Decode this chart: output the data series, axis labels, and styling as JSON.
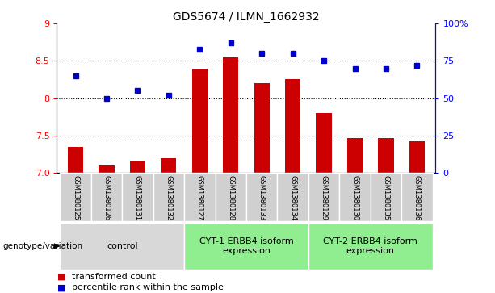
{
  "title": "GDS5674 / ILMN_1662932",
  "samples": [
    "GSM1380125",
    "GSM1380126",
    "GSM1380131",
    "GSM1380132",
    "GSM1380127",
    "GSM1380128",
    "GSM1380133",
    "GSM1380134",
    "GSM1380129",
    "GSM1380130",
    "GSM1380135",
    "GSM1380136"
  ],
  "red_values": [
    7.35,
    7.1,
    7.15,
    7.2,
    8.4,
    8.55,
    8.2,
    8.25,
    7.8,
    7.47,
    7.47,
    7.42
  ],
  "blue_values": [
    65,
    50,
    55,
    52,
    83,
    87,
    80,
    80,
    75,
    70,
    70,
    72
  ],
  "ylim_left": [
    7.0,
    9.0
  ],
  "ylim_right": [
    0,
    100
  ],
  "yticks_left": [
    7.0,
    7.5,
    8.0,
    8.5,
    9.0
  ],
  "yticks_right": [
    0,
    25,
    50,
    75,
    100
  ],
  "ytick_labels_right": [
    "0",
    "25",
    "50",
    "75",
    "100%"
  ],
  "bar_color": "#cc0000",
  "dot_color": "#0000cc",
  "bar_bottom": 7.0,
  "groups": [
    {
      "label": "control",
      "start": 0,
      "end": 3,
      "color": "#d8d8d8"
    },
    {
      "label": "CYT-1 ERBB4 isoform\nexpression",
      "start": 4,
      "end": 7,
      "color": "#90ee90"
    },
    {
      "label": "CYT-2 ERBB4 isoform\nexpression",
      "start": 8,
      "end": 11,
      "color": "#90ee90"
    }
  ],
  "group_label_prefix": "genotype/variation",
  "legend_red": "transformed count",
  "legend_blue": "percentile rank within the sample",
  "grid_color": "black",
  "grid_linewidth": 0.8,
  "sample_box_color": "#d0d0d0",
  "title_fontsize": 10,
  "axis_fontsize": 8,
  "sample_fontsize": 6,
  "group_fontsize": 8,
  "legend_fontsize": 8
}
